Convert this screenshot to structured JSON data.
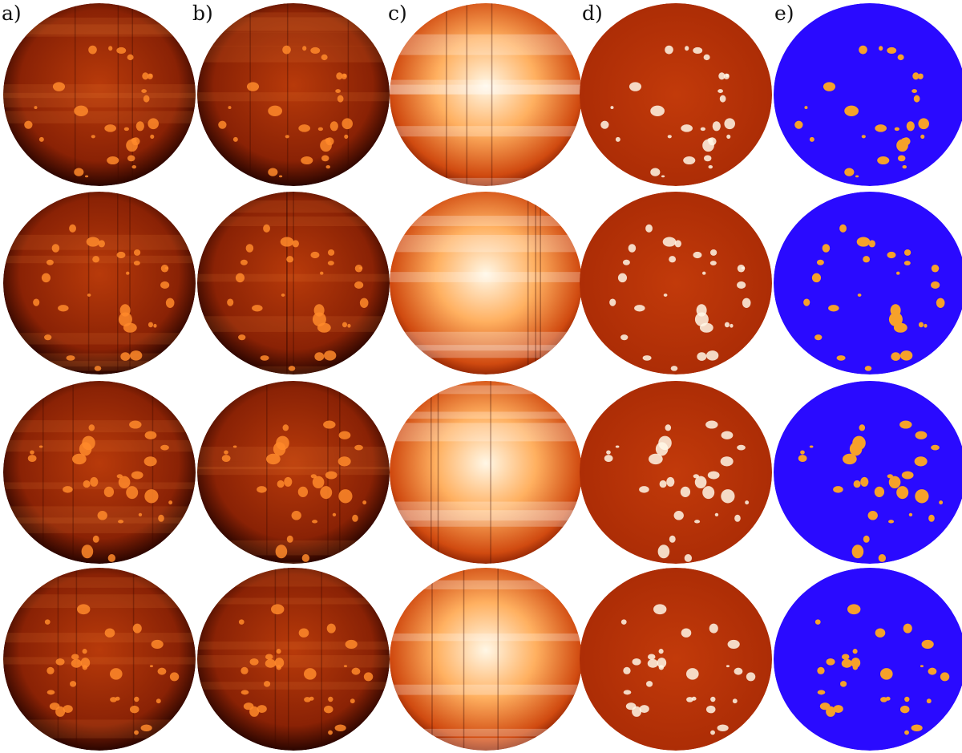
{
  "figure": {
    "panel_labels": [
      "a)",
      "b)",
      "c)",
      "d)",
      "e)"
    ],
    "colors": {
      "heat_dark": "#2a0500",
      "heat_mid": "#b83a0a",
      "heat_bright": "#ff8a2a",
      "heat_white": "#fff7e6",
      "mask_background": "#2a0aff",
      "mask_feature": "#f6a12a"
    },
    "rows": 4,
    "panel_types": [
      "raw-image",
      "corrected-image",
      "flat-field-image",
      "enhanced-image",
      "binary-mask"
    ]
  }
}
